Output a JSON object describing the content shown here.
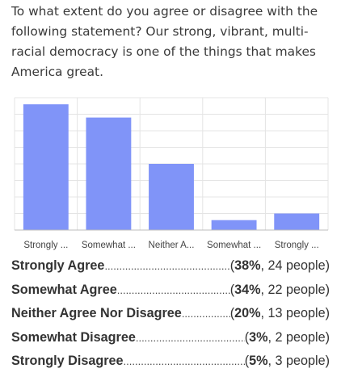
{
  "question": "To what extent do you agree or disagree with the following statement? Our strong, vibrant, multi-racial democracy is one of the things that makes America great.",
  "colors": {
    "bar": "#8094f8",
    "grid": "#e4e4e4",
    "axis": "#bcbcbc",
    "tick_text": "#444444"
  },
  "chart_data": {
    "type": "bar",
    "categories": [
      "Strongly ...",
      "Somewhat ...",
      "Neither A...",
      "Somewhat ...",
      "Strongly ..."
    ],
    "values": [
      38,
      34,
      20,
      3,
      5
    ],
    "ylim": [
      0,
      40
    ],
    "grid": true,
    "title": "",
    "xlabel": "",
    "ylabel": ""
  },
  "results": [
    {
      "label": "Strongly Agree",
      "open": "(",
      "percent": "38%",
      "rest": ", 24 people)"
    },
    {
      "label": "Somewhat Agree",
      "open": "(",
      "percent": "34%",
      "rest": ", 22 people)"
    },
    {
      "label": "Neither Agree Nor Disagree",
      "open": "(",
      "percent": "20%",
      "rest": ", 13 people)"
    },
    {
      "label": "Somewhat Disagree",
      "open": "(",
      "percent": "3%",
      "rest": ", 2 people)"
    },
    {
      "label": "Strongly Disagree",
      "open": "(",
      "percent": "5%",
      "rest": ", 3 people)"
    }
  ]
}
